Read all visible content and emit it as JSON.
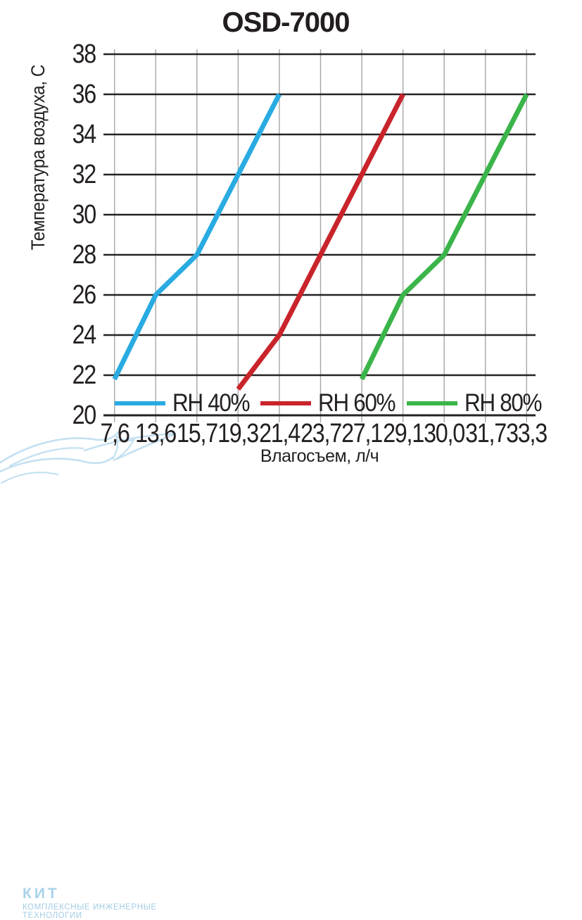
{
  "title": "OSD-7000",
  "chart_data": {
    "type": "line",
    "title": "OSD-7000",
    "xlabel": "Влагосъем, л/ч",
    "ylabel": "Температура воздуха, С",
    "x_axis_type": "categorical",
    "categories": [
      "7,6",
      "13,6",
      "15,7",
      "19,3",
      "21,4",
      "23,7",
      "27,1",
      "29,1",
      "30,0",
      "31,7",
      "33,3"
    ],
    "y_ticks": [
      38,
      36,
      34,
      32,
      30,
      28,
      26,
      24,
      22,
      20
    ],
    "ylim": [
      20,
      38
    ],
    "grid": true,
    "legend_position": "bottom, inside plot above x-axis",
    "series": [
      {
        "name": "RH 40%",
        "color": "#29abe2",
        "points": [
          [
            "7,6",
            21.8
          ],
          [
            "13,6",
            26
          ],
          [
            "15,7",
            28
          ],
          [
            "19,3",
            32
          ],
          [
            "21,4",
            36
          ]
        ]
      },
      {
        "name": "RH 60%",
        "color": "#c9242b",
        "points": [
          [
            "19,3",
            21.3
          ],
          [
            "21,4",
            24
          ],
          [
            "23,7",
            28
          ],
          [
            "27,1",
            32
          ],
          [
            "29,1",
            36
          ]
        ]
      },
      {
        "name": "RH 80%",
        "color": "#3bb54a",
        "points": [
          [
            "27,1",
            21.8
          ],
          [
            "29,1",
            26
          ],
          [
            "30,0",
            28
          ],
          [
            "31,7",
            32
          ],
          [
            "33,3",
            36
          ]
        ]
      }
    ],
    "colors": {
      "h_grid": "#262223",
      "v_grid": "#a6a6a6",
      "text": "#242021"
    }
  },
  "logo": {
    "name": "КИТ",
    "subtitle_line1": "КОМПЛЕКСНЫЕ ИНЖЕНЕРНЫЕ",
    "subtitle_line2": "ТЕХНОЛОГИИ",
    "color": "#a9d2ea"
  }
}
